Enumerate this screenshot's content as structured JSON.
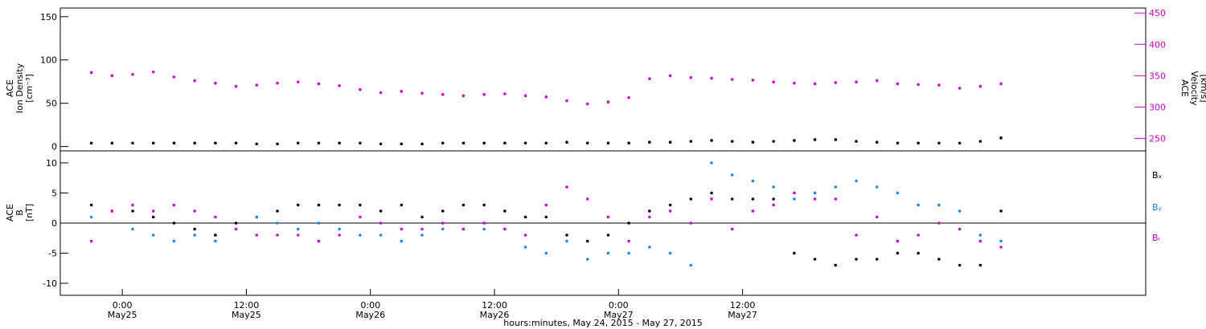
{
  "colors": {
    "density": "#000000",
    "velocity": "#cc00cc",
    "bx": "#000000",
    "by": "#1a87e0",
    "bz": "#cc00cc"
  },
  "chart_data": [
    {
      "type": "scatter",
      "panel": "top",
      "ylabel_lines": [
        "ACE",
        "Ion Density",
        "[cm⁻³]"
      ],
      "y2label_lines": [
        "ACE",
        "Velocity",
        "[km/s]"
      ],
      "ylim": [
        -5,
        160
      ],
      "yticks": [
        0,
        50,
        100,
        150
      ],
      "y2lim": [
        230,
        458
      ],
      "y2ticks": [
        250,
        300,
        350,
        400,
        450
      ],
      "series": [
        {
          "key": "density",
          "axis": "left",
          "x": [
            0,
            2,
            4,
            6,
            8,
            10,
            12,
            14,
            16,
            18,
            20,
            22,
            24,
            26,
            28,
            30,
            32,
            34,
            36,
            38,
            40,
            42,
            44,
            46,
            48,
            50,
            52,
            54,
            56,
            58,
            60,
            62,
            64,
            66,
            68,
            70,
            72,
            74,
            76,
            78,
            80,
            82,
            84,
            86,
            88
          ],
          "y": [
            4,
            4,
            4,
            4,
            4,
            4,
            4,
            4,
            3,
            3,
            4,
            4,
            4,
            4,
            3,
            3,
            3,
            4,
            4,
            4,
            4,
            4,
            4,
            5,
            4,
            4,
            4,
            5,
            5,
            6,
            7,
            6,
            5,
            6,
            7,
            8,
            8,
            6,
            5,
            4,
            4,
            4,
            4,
            6,
            10
          ]
        },
        {
          "key": "velocity",
          "axis": "right",
          "x": [
            0,
            2,
            4,
            6,
            8,
            10,
            12,
            14,
            16,
            18,
            20,
            22,
            24,
            26,
            28,
            30,
            32,
            34,
            36,
            38,
            40,
            42,
            44,
            46,
            48,
            50,
            52,
            54,
            56,
            58,
            60,
            62,
            64,
            66,
            68,
            70,
            72,
            74,
            76,
            78,
            80,
            82,
            84,
            86,
            88
          ],
          "y": [
            355,
            350,
            352,
            356,
            348,
            342,
            338,
            333,
            335,
            338,
            340,
            337,
            334,
            328,
            323,
            325,
            322,
            320,
            318,
            320,
            321,
            318,
            316,
            310,
            305,
            308,
            315,
            345,
            350,
            347,
            346,
            344,
            343,
            340,
            338,
            337,
            339,
            340,
            342,
            337,
            336,
            335,
            330,
            333,
            337
          ]
        }
      ]
    },
    {
      "type": "scatter",
      "panel": "bottom",
      "ylabel_lines": [
        "ACE",
        "B",
        "[nT]"
      ],
      "ylim": [
        -12,
        12
      ],
      "yticks": [
        -10,
        -5,
        0,
        5,
        10
      ],
      "legend": [
        "Bₓ",
        "Bᵧ",
        "Bᵣ"
      ],
      "series": [
        {
          "key": "bx",
          "x": [
            0,
            2,
            4,
            6,
            8,
            10,
            12,
            14,
            16,
            18,
            20,
            22,
            24,
            26,
            28,
            30,
            32,
            34,
            36,
            38,
            40,
            42,
            44,
            46,
            48,
            50,
            52,
            54,
            56,
            58,
            60,
            62,
            64,
            66,
            68,
            70,
            72,
            74,
            76,
            78,
            80,
            82,
            84,
            86,
            88
          ],
          "y": [
            3,
            2,
            2,
            1,
            0,
            -1,
            -2,
            0,
            1,
            2,
            3,
            3,
            3,
            3,
            2,
            3,
            1,
            2,
            3,
            3,
            2,
            1,
            1,
            -2,
            -3,
            -2,
            0,
            2,
            3,
            4,
            5,
            4,
            4,
            4,
            -5,
            -6,
            -7,
            -6,
            -6,
            -5,
            -5,
            -6,
            -7,
            -7,
            2
          ]
        },
        {
          "key": "by",
          "x": [
            0,
            2,
            4,
            6,
            8,
            10,
            12,
            14,
            16,
            18,
            20,
            22,
            24,
            26,
            28,
            30,
            32,
            34,
            36,
            38,
            40,
            42,
            44,
            46,
            48,
            50,
            52,
            54,
            56,
            58,
            60,
            62,
            64,
            66,
            68,
            70,
            72,
            74,
            76,
            78,
            80,
            82,
            84,
            86,
            88
          ],
          "y": [
            1,
            2,
            -1,
            -2,
            -3,
            -2,
            -3,
            -1,
            1,
            0,
            -1,
            0,
            -1,
            -2,
            -2,
            -3,
            -2,
            -1,
            -1,
            -1,
            -1,
            -4,
            -5,
            -3,
            -6,
            -5,
            -5,
            -4,
            -5,
            -7,
            10,
            8,
            7,
            6,
            4,
            5,
            6,
            7,
            6,
            5,
            3,
            3,
            2,
            -2,
            -3
          ]
        },
        {
          "key": "bz",
          "x": [
            0,
            2,
            4,
            6,
            8,
            10,
            12,
            14,
            16,
            18,
            20,
            22,
            24,
            26,
            28,
            30,
            32,
            34,
            36,
            38,
            40,
            42,
            44,
            46,
            48,
            50,
            52,
            54,
            56,
            58,
            60,
            62,
            64,
            66,
            68,
            70,
            72,
            74,
            76,
            78,
            80,
            82,
            84,
            86,
            88
          ],
          "y": [
            -3,
            2,
            3,
            2,
            3,
            2,
            1,
            -1,
            -2,
            -2,
            -2,
            -3,
            -2,
            1,
            0,
            -1,
            -1,
            0,
            -1,
            0,
            -1,
            -2,
            3,
            6,
            4,
            1,
            -3,
            1,
            2,
            0,
            4,
            -1,
            2,
            3,
            5,
            4,
            4,
            -2,
            1,
            -3,
            -2,
            0,
            -1,
            -3,
            -4
          ]
        }
      ]
    }
  ],
  "x_axis": {
    "xlim": [
      -3,
      102
    ],
    "ticks": [
      {
        "x": 3,
        "time": "0:00",
        "date": "May25"
      },
      {
        "x": 15,
        "time": "12:00",
        "date": "May25"
      },
      {
        "x": 27,
        "time": "0:00",
        "date": "May26"
      },
      {
        "x": 39,
        "time": "12:00",
        "date": "May26"
      },
      {
        "x": 51,
        "time": "0:00",
        "date": "May27"
      },
      {
        "x": 63,
        "time": "12:00",
        "date": "May27"
      }
    ],
    "title": "hours:minutes, May 24, 2015 - May 27, 2015"
  }
}
